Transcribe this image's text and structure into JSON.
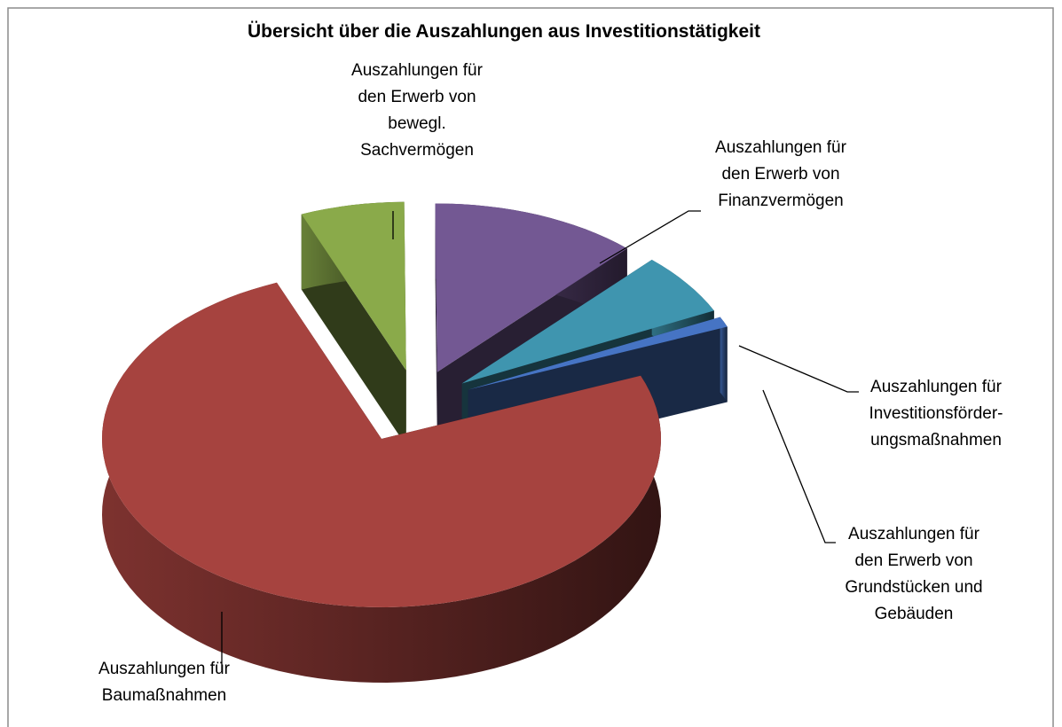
{
  "chart_data": {
    "type": "pie3d",
    "title": "Übersicht über die Auszahlungen aus Investitionstätigkeit",
    "categories": [
      "Auszahlungen für\nden Erwerb von\nbewegl.\nSachvermögen",
      "Auszahlungen für\nden Erwerb von\nFinanzvermögen",
      "Auszahlungen für\nInvestitionsförder-\nungsmaßnahmen",
      "Auszahlungen für\nden Erwerb von\nGrundstücken und\nGebäuden",
      "Auszahlungen für\nBaumaßnahmen"
    ],
    "values": [
      6,
      12,
      6,
      1,
      75
    ],
    "colors": [
      "#8aaa4a",
      "#735893",
      "#3f95af",
      "#4674c4",
      "#a6433f"
    ]
  }
}
